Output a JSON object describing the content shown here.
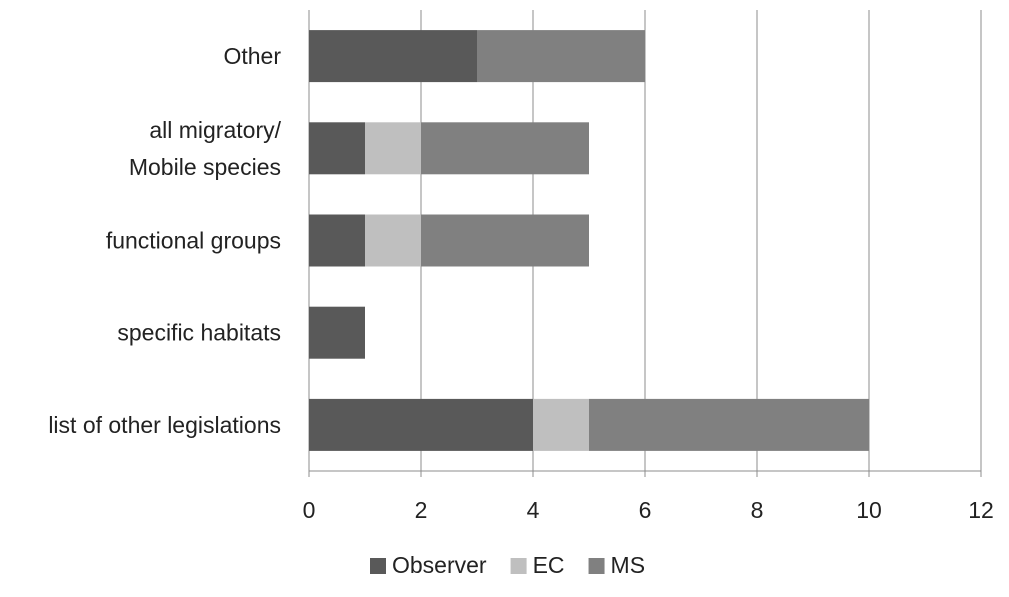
{
  "chart_data": {
    "type": "bar",
    "orientation": "horizontal",
    "stacked": true,
    "title": "",
    "xlabel": "",
    "ylabel": "",
    "categories": [
      "list of other legislations",
      "specific habitats",
      "functional groups",
      "all migratory/ Mobile species",
      "Other"
    ],
    "series": [
      {
        "name": "Observer",
        "values": [
          4,
          1,
          1,
          1,
          3
        ],
        "color": "#595959"
      },
      {
        "name": "EC",
        "values": [
          1,
          0,
          1,
          1,
          0
        ],
        "color": "#bfbfbf"
      },
      {
        "name": "MS",
        "values": [
          5,
          0,
          3,
          3,
          3
        ],
        "color": "#808080"
      }
    ],
    "xlim": [
      0,
      12
    ],
    "xticks": [
      0,
      2,
      4,
      6,
      8,
      10,
      12
    ],
    "grid": true,
    "legend_position": "bottom"
  }
}
